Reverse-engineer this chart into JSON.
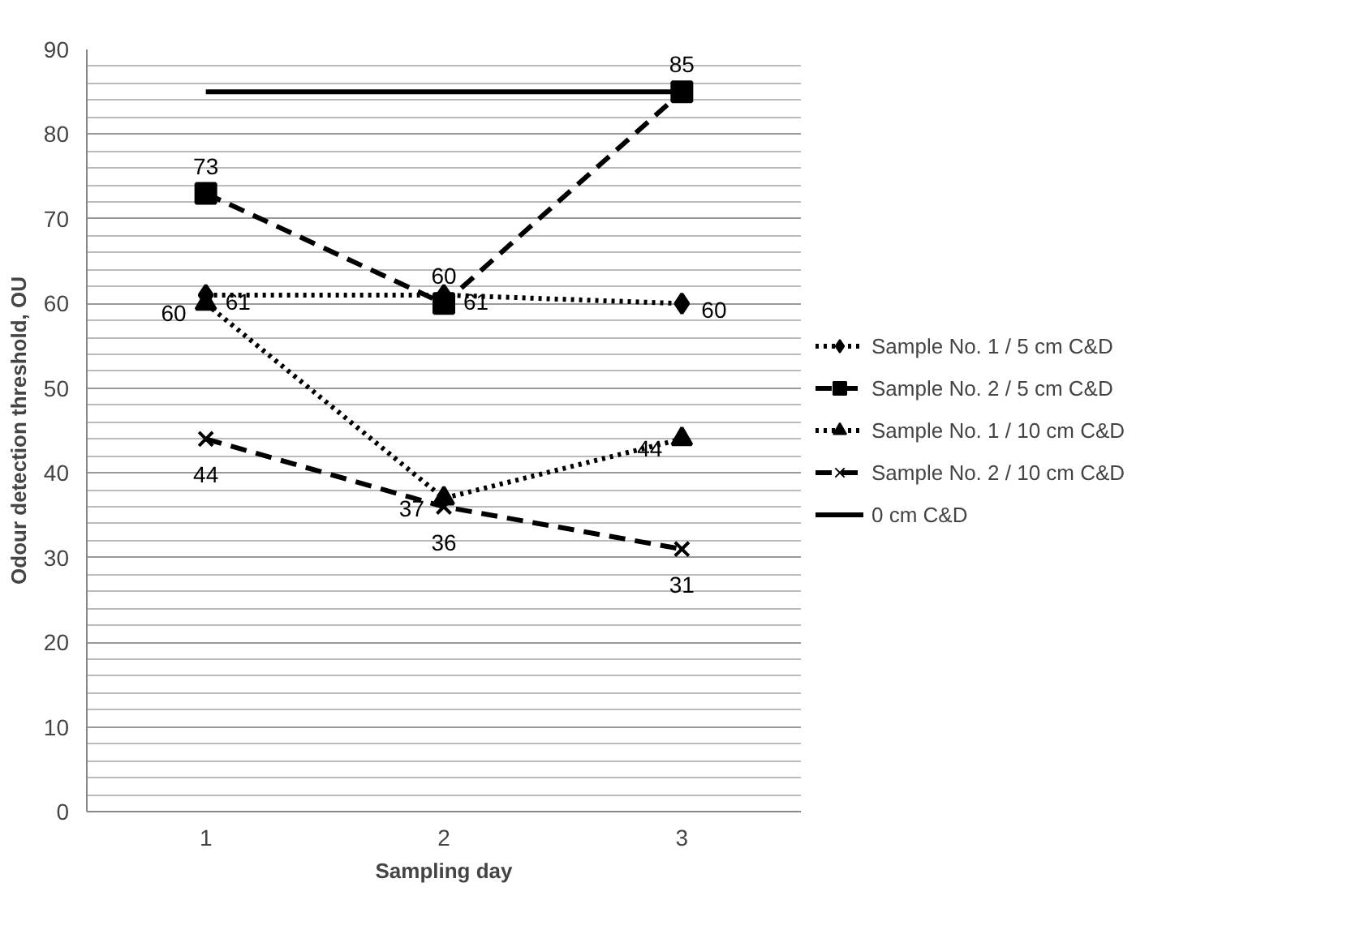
{
  "chart_data": {
    "type": "line",
    "xlabel": "Sampling day",
    "ylabel": "Odour detection threshold, OU",
    "categories": [
      "1",
      "2",
      "3"
    ],
    "ylim": [
      0,
      90
    ],
    "yticks": [
      0,
      10,
      20,
      30,
      40,
      50,
      60,
      70,
      80,
      90
    ],
    "grid": "y",
    "legend": "right",
    "series": [
      {
        "name": "Sample No. 1 / 5 cm C&D",
        "color": "#000000",
        "values": [
          61,
          61,
          60
        ],
        "marker": "diamond",
        "line_style": "dotted",
        "value_labels": [
          "61",
          "61",
          "60"
        ]
      },
      {
        "name": "Sample No. 2 / 5 cm C&D",
        "color": "#000000",
        "values": [
          73,
          60,
          85
        ],
        "marker": "square",
        "line_style": "dashed",
        "value_labels": [
          "73",
          "60",
          "85"
        ]
      },
      {
        "name": "Sample No. 1 / 10 cm C&D",
        "color": "#000000",
        "values": [
          60,
          37,
          44
        ],
        "marker": "triangle",
        "line_style": "dotted",
        "value_labels": [
          "60",
          "37",
          "44"
        ]
      },
      {
        "name": "Sample No. 2 / 10 cm C&D",
        "color": "#000000",
        "values": [
          44,
          36,
          31
        ],
        "marker": "cross",
        "line_style": "dashed",
        "value_labels": [
          "44",
          "36",
          "31"
        ]
      },
      {
        "name": "0 cm C&D",
        "color": "#000000",
        "values": [
          85,
          85,
          85
        ],
        "marker": "none",
        "line_style": "solid"
      }
    ]
  }
}
